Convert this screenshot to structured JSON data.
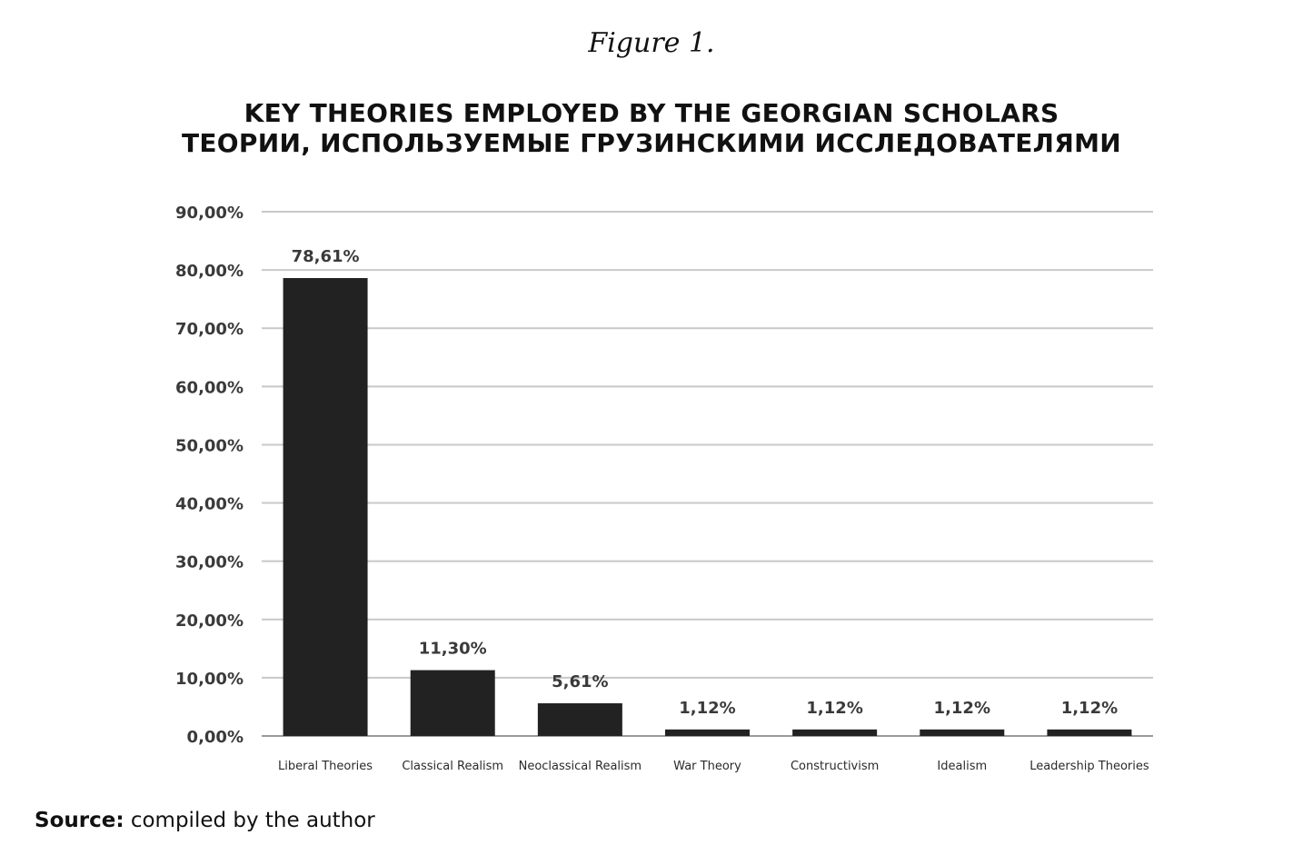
{
  "figure_label": "Figure 1.",
  "chart_data": {
    "type": "bar",
    "title": "KEY THEORIES EMPLOYED BY THE GEORGIAN SCHOLARS",
    "subtitle": "ТЕОРИИ, ИСПОЛЬЗУЕМЫЕ ГРУЗИНСКИМИ ИССЛЕДОВАТЕЛЯМИ",
    "xlabel": "",
    "ylabel": "",
    "categories": [
      "Liberal Theories",
      "Classical Realism",
      "Neoclassical Realism",
      "War Theory",
      "Constructivism",
      "Idealism",
      "Leadership Theories"
    ],
    "values": [
      78.61,
      11.3,
      5.61,
      1.12,
      1.12,
      1.12,
      1.12
    ],
    "data_labels": [
      "78,61%",
      "11,30%",
      "5,61%",
      "1,12%",
      "1,12%",
      "1,12%",
      "1,12%"
    ],
    "ylim": [
      0,
      90
    ],
    "yticks": [
      0,
      10,
      20,
      30,
      40,
      50,
      60,
      70,
      80,
      90
    ],
    "ytick_labels": [
      "0,00%",
      "10,00%",
      "20,00%",
      "30,00%",
      "40,00%",
      "50,00%",
      "60,00%",
      "70,00%",
      "80,00%",
      "90,00%"
    ],
    "grid": true,
    "legend": "none",
    "bar_color": "#222222",
    "grid_color": "#c8c8c8"
  },
  "source": {
    "label": "Source:",
    "text": "compiled by the author"
  }
}
